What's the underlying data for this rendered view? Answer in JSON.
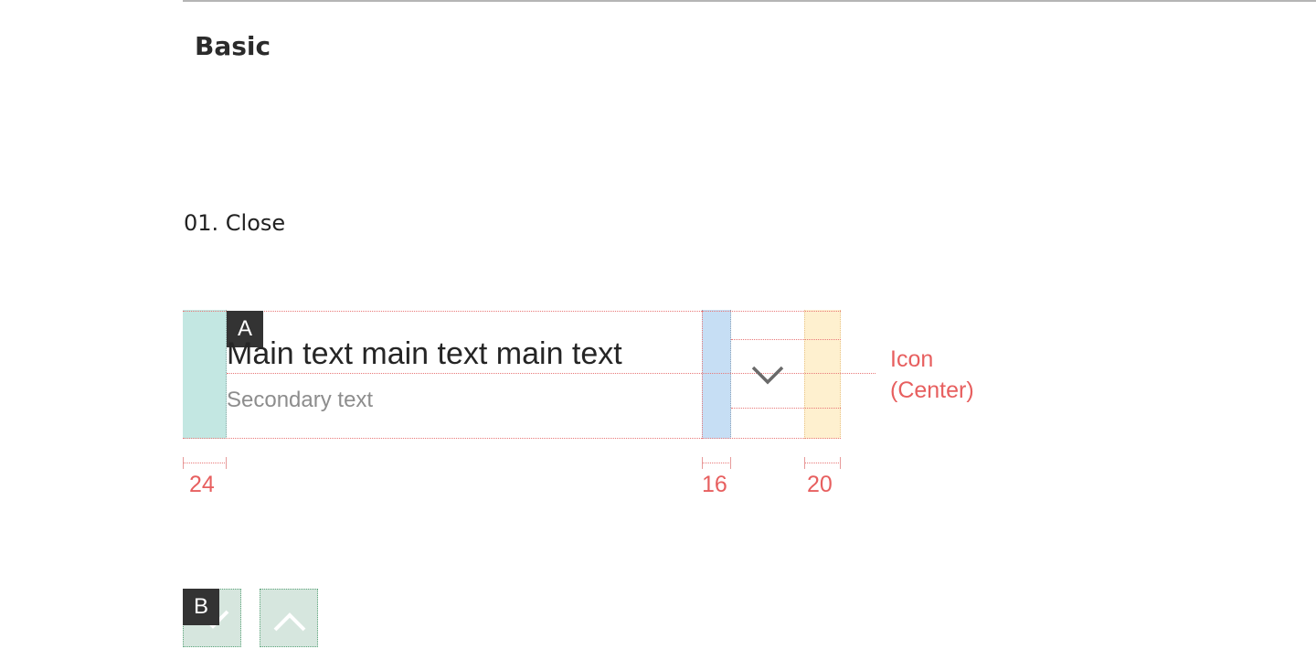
{
  "page": {
    "section_title": "Basic",
    "subsection_title": "01. Close"
  },
  "spec": {
    "badge_a": "A",
    "badge_b": "B",
    "main_text": "Main text main text main text",
    "secondary_text": "Secondary text",
    "icon_label_line1": "Icon",
    "icon_label_line2": "(Center)",
    "icon": "chevron-down-icon",
    "dimensions": [
      "24",
      "16",
      "20"
    ]
  },
  "samples": {
    "icons": [
      "chevron-down-icon",
      "chevron-up-icon"
    ]
  },
  "colors": {
    "left_padding_zone": "#c3e7e2",
    "gap_zone": "#c6def4",
    "right_padding_zone": "#fef0cf",
    "annotation": "#e75f5f",
    "sample_button": "#d6e6de"
  }
}
